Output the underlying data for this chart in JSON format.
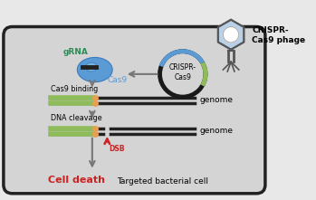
{
  "bg_color": "#e8e8e8",
  "cell_color": "#d4d4d4",
  "cell_edge_color": "#222222",
  "genome_color": "#222222",
  "genome_highlight_color": "#8fbc5a",
  "genome_orange": "#e8a050",
  "cas9_color": "#5b9bd5",
  "grna_color": "#2e8b57",
  "arrow_color": "#777777",
  "red_color": "#cc2222",
  "phage_body_color": "#b8d0e8",
  "plasmid_main_color": "#1a1a1a",
  "plasmid_highlight_color": "#5b9bd5",
  "title_text": "CRISPR-\nCas9 phage",
  "cell_label": "Targeted bacterial cell",
  "grna_label": "gRNA",
  "cas9_label": "Cas9",
  "binding_label": "Cas9 binding",
  "cleavage_label": "DNA cleavage",
  "genome_label": "genome",
  "dsb_label": "DSB",
  "death_label": "Cell death",
  "crispr_label": "CRISPR-\nCas9"
}
